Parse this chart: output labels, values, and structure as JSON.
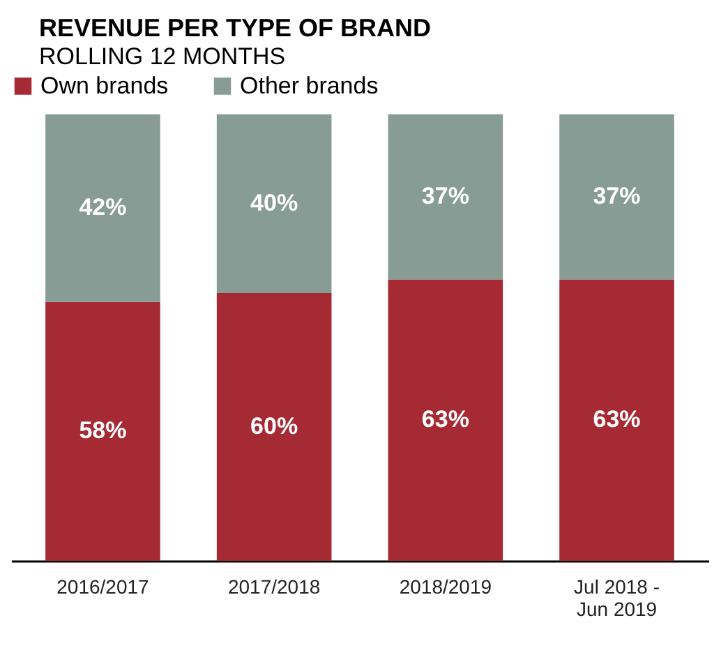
{
  "chart_data": {
    "type": "bar",
    "title": "REVENUE PER TYPE OF BRAND",
    "subtitle": "ROLLING 12 MONTHS",
    "categories": [
      "2016/2017",
      "2017/2018",
      "2018/2019",
      "Jul 2018 -\nJun 2019"
    ],
    "stacked": true,
    "ylim": [
      0,
      100
    ],
    "tick_labels": "x",
    "legend": "top left",
    "series": [
      {
        "name": "Own brands",
        "color": "#a52a33",
        "values": [
          58,
          60,
          63,
          63
        ],
        "value_labels": [
          "58%",
          "60%",
          "63%",
          "63%"
        ]
      },
      {
        "name": "Other brands",
        "color": "#879c94",
        "values": [
          42,
          40,
          37,
          37
        ],
        "value_labels": [
          "42%",
          "40%",
          "37%",
          "37%"
        ]
      }
    ]
  }
}
